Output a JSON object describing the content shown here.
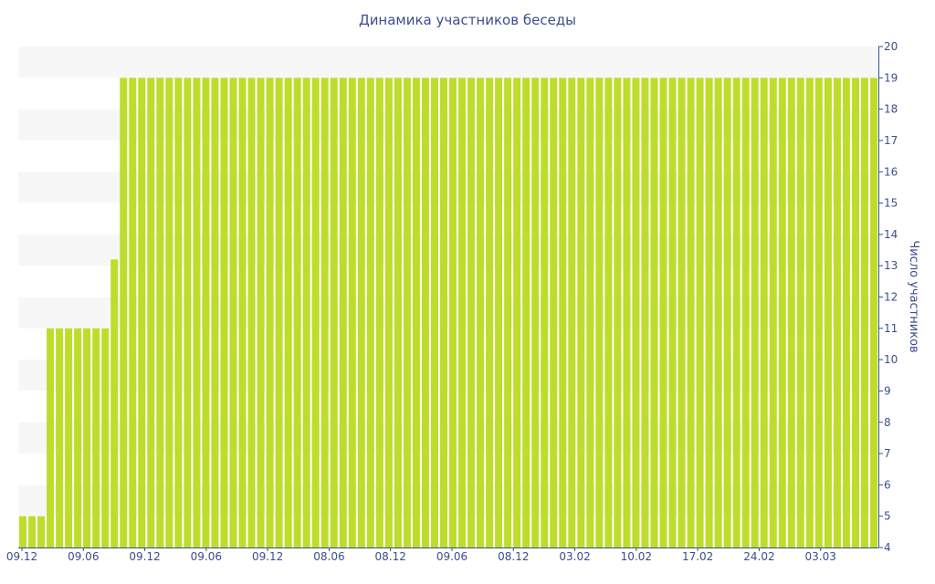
{
  "chart_data": {
    "type": "bar",
    "title": "Динамика участников беседы",
    "ylabel": "Число участников",
    "ylim": [
      4,
      20
    ],
    "y_ticks": [
      4,
      5,
      6,
      7,
      8,
      9,
      10,
      11,
      12,
      13,
      14,
      15,
      16,
      17,
      18,
      19,
      20
    ],
    "x_tick_labels": [
      "09.12",
      "09.06",
      "09.12",
      "09.06",
      "09.12",
      "08.06",
      "08.12",
      "09.06",
      "08.12",
      "03.02",
      "10.02",
      "17.02",
      "24.02",
      "03.03"
    ],
    "values": [
      5,
      5,
      5,
      11,
      11,
      11,
      11,
      11,
      11,
      11,
      13.2,
      19,
      19,
      19,
      19,
      19,
      19,
      19,
      19,
      19,
      19,
      19,
      19,
      19,
      19,
      19,
      19,
      19,
      19,
      19,
      19,
      19,
      19,
      19,
      19,
      19,
      19,
      19,
      19,
      19,
      19,
      19,
      19,
      19,
      19,
      19,
      19,
      19,
      19,
      19,
      19,
      19,
      19,
      19,
      19,
      19,
      19,
      19,
      19,
      19,
      19,
      19,
      19,
      19,
      19,
      19,
      19,
      19,
      19,
      19,
      19,
      19,
      19,
      19,
      19,
      19,
      19,
      19,
      19,
      19,
      19,
      19,
      19,
      19,
      19,
      19,
      19,
      19,
      19,
      19,
      19,
      19,
      19,
      19
    ],
    "grid": "alternating horizontal bands",
    "bar_color": "#bddd2c",
    "band_color": "#f7f7f7",
    "axis_color": "#3a4f8c",
    "y_axis_side": "right"
  }
}
